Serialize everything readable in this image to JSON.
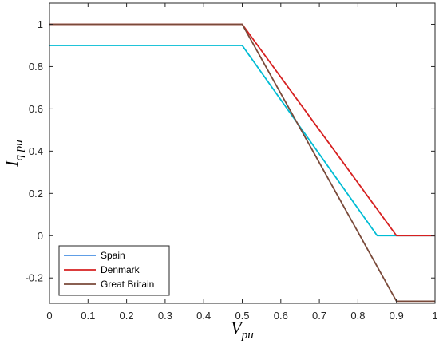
{
  "chart_data": {
    "type": "line",
    "xlim": [
      0,
      1
    ],
    "ylim": [
      -0.32,
      1.1
    ],
    "xticks": [
      0,
      0.1,
      0.2,
      0.3,
      0.4,
      0.5,
      0.6,
      0.7,
      0.8,
      0.9,
      1
    ],
    "yticks": [
      -0.2,
      0,
      0.2,
      0.4,
      0.6,
      0.8,
      1
    ],
    "xtick_labels": [
      "0",
      "0.1",
      "0.2",
      "0.3",
      "0.4",
      "0.5",
      "0.6",
      "0.7",
      "0.8",
      "0.9",
      "1"
    ],
    "ytick_labels": [
      "-0.2",
      "0",
      "0.2",
      "0.4",
      "0.6",
      "0.8",
      "1"
    ],
    "xlabel": {
      "main": "V",
      "sub": "pu"
    },
    "ylabel": {
      "main": "I",
      "sub": "q pu"
    },
    "grid": false,
    "legend_position": "bottom-left",
    "series": [
      {
        "name": "Spain",
        "color": "#00bcd4",
        "legend_color": "#4a90e2",
        "points": [
          [
            0,
            0.9
          ],
          [
            0.5,
            0.9
          ],
          [
            0.85,
            0.0
          ],
          [
            1,
            0.0
          ]
        ]
      },
      {
        "name": "Denmark",
        "color": "#d62020",
        "legend_color": "#d62020",
        "points": [
          [
            0,
            1.0
          ],
          [
            0.5,
            1.0
          ],
          [
            0.9,
            0.0
          ],
          [
            1,
            0.0
          ]
        ]
      },
      {
        "name": "Great Britain",
        "color": "#7a4a3a",
        "legend_color": "#7a4a3a",
        "points": [
          [
            0,
            1.0
          ],
          [
            0.5,
            1.0
          ],
          [
            0.9,
            -0.31
          ],
          [
            1,
            -0.31
          ]
        ]
      }
    ]
  }
}
